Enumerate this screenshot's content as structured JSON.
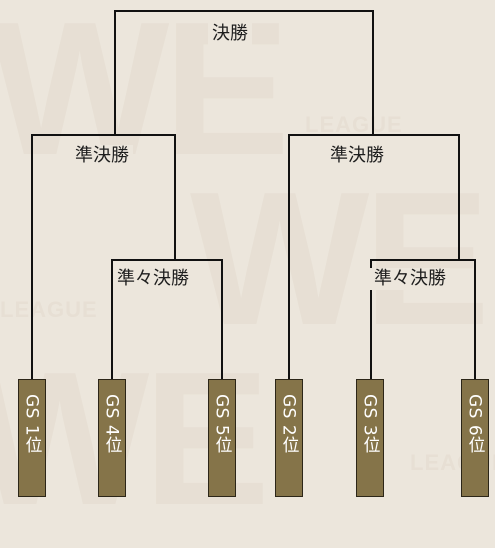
{
  "watermark": {
    "big": [
      "WE",
      "WE",
      "WE"
    ],
    "small": [
      "LEAGUE",
      "LEAGUE",
      "LEAGUE"
    ]
  },
  "rounds": {
    "final": "決勝",
    "semifinal_left": "準決勝",
    "semifinal_right": "準決勝",
    "quarterfinal_left": "準々決勝",
    "quarterfinal_right": "準々決勝"
  },
  "teams": [
    "GS 1位",
    "GS 4位",
    "GS 5位",
    "GS 2位",
    "GS 3位",
    "GS 6位"
  ],
  "colors": {
    "background": "#ece6dc",
    "team_box": "#857449",
    "team_text": "#ffffff",
    "line": "#111111"
  }
}
